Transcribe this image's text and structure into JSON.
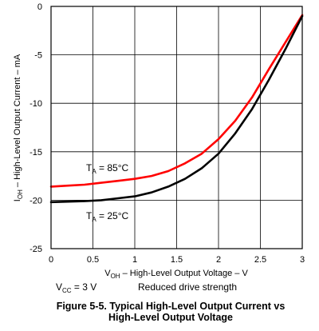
{
  "chart_data": {
    "type": "line",
    "title": "",
    "xlabel": "V_OH – High-Level Output Voltage – V",
    "ylabel": "I_OH – High-Level Output Current – mA",
    "xlim": [
      0,
      3
    ],
    "ylim": [
      -25,
      0
    ],
    "x_ticks": [
      "0",
      "0.5",
      "1",
      "1.5",
      "2",
      "2.5",
      "3"
    ],
    "y_ticks": [
      "0",
      "-5",
      "-10",
      "-15",
      "-20",
      "-25"
    ],
    "grid": true,
    "series": [
      {
        "name": "T_A = 85°C",
        "color": "#ff0000",
        "x": [
          0,
          0.2,
          0.4,
          0.6,
          0.8,
          1.0,
          1.2,
          1.4,
          1.6,
          1.8,
          2.0,
          2.2,
          2.4,
          2.6,
          2.8,
          3.0
        ],
        "y": [
          -18.6,
          -18.5,
          -18.4,
          -18.2,
          -18.0,
          -17.8,
          -17.5,
          -17.0,
          -16.2,
          -15.2,
          -13.7,
          -11.8,
          -9.4,
          -6.5,
          -3.7,
          -0.9
        ]
      },
      {
        "name": "T_A = 25°C",
        "color": "#000000",
        "x": [
          0,
          0.2,
          0.4,
          0.6,
          0.8,
          1.0,
          1.2,
          1.4,
          1.6,
          1.8,
          2.0,
          2.2,
          2.4,
          2.6,
          2.8,
          3.0
        ],
        "y": [
          -20.2,
          -20.15,
          -20.1,
          -20.0,
          -19.8,
          -19.6,
          -19.2,
          -18.6,
          -17.8,
          -16.7,
          -15.2,
          -13.1,
          -10.6,
          -7.6,
          -4.4,
          -1.0
        ]
      }
    ],
    "annotations": {
      "t85": "T_A = 85°C",
      "t25": "T_A = 25°C",
      "vcc": "V_CC = 3 V",
      "drive": "Reduced drive strength"
    },
    "caption_line1": "Figure 5-5. Typical High-Level Output Current vs",
    "caption_line2": "High-Level Output Voltage"
  }
}
